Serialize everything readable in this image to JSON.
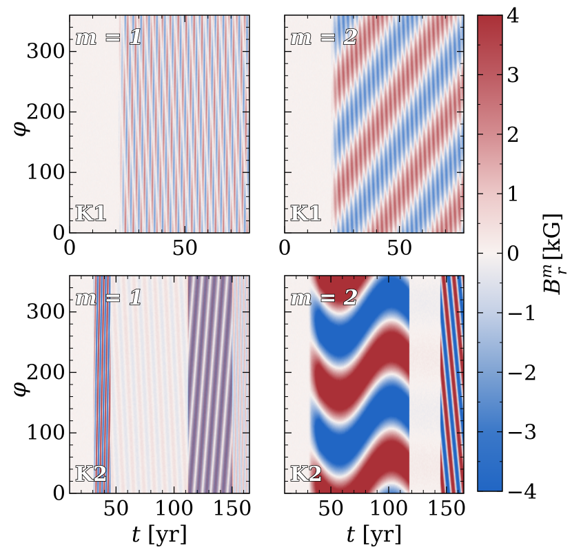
{
  "chart_data": {
    "type": "heatmap",
    "colorbar": {
      "label_main": "B",
      "label_sup": "m",
      "label_sub": "r",
      "label_unit": "[kG]",
      "min": -4,
      "max": 4,
      "ticks": [
        4,
        3,
        2,
        1,
        0,
        -1,
        -2,
        -3,
        -4
      ],
      "tick_labels": [
        "4",
        "3",
        "2",
        "1",
        "0",
        "−1",
        "−2",
        "−3",
        "−4"
      ],
      "colors": {
        "low": "#2166c4",
        "mid": "#f8f2f0",
        "high": "#aa3037"
      }
    },
    "panels": [
      {
        "id": "k1-m1",
        "model": "K1",
        "mode": "m = 1",
        "xlim": [
          0,
          78
        ],
        "ylim": [
          0,
          360
        ],
        "xticks": [
          0,
          50
        ],
        "xtick_labels": [
          "0",
          "50"
        ],
        "yticks": [
          0,
          100,
          200,
          300
        ],
        "ytick_labels": [
          "0",
          "100",
          "200",
          "300"
        ],
        "ylabel": "φ",
        "xlabel": "",
        "xunit": "",
        "onset_t": 21,
        "pattern": "stripes_fast",
        "amplitude": 2.5
      },
      {
        "id": "k1-m2",
        "model": "K1",
        "mode": "m = 2",
        "xlim": [
          0,
          78
        ],
        "ylim": [
          0,
          360
        ],
        "xticks": [
          0,
          50
        ],
        "xtick_labels": [
          "0",
          "50"
        ],
        "yticks": [
          0,
          100,
          200,
          300
        ],
        "ytick_labels": [],
        "ylabel": "",
        "xlabel": "",
        "xunit": "",
        "onset_t": 20,
        "pattern": "stripes_slow",
        "amplitude": 2.5
      },
      {
        "id": "k2-m1",
        "model": "K2",
        "mode": "m = 1",
        "xlim": [
          10,
          165
        ],
        "ylim": [
          0,
          360
        ],
        "xticks": [
          50,
          100,
          150
        ],
        "xtick_labels": [
          "50",
          "100",
          "150"
        ],
        "yticks": [
          0,
          100,
          200,
          300
        ],
        "ytick_labels": [
          "0",
          "100",
          "200",
          "300"
        ],
        "ylabel": "φ",
        "xlabel": "t",
        "xunit": "[yr]",
        "onset_t": 30,
        "pattern": "bursts",
        "amplitude": 3
      },
      {
        "id": "k2-m2",
        "model": "K2",
        "mode": "m = 2",
        "xlim": [
          10,
          165
        ],
        "ylim": [
          0,
          360
        ],
        "xticks": [
          50,
          100,
          150
        ],
        "xtick_labels": [
          "50",
          "100",
          "150"
        ],
        "yticks": [
          0,
          100,
          200,
          300
        ],
        "ytick_labels": [],
        "ylabel": "",
        "xlabel": "t",
        "xunit": "[yr]",
        "onset_t": 30,
        "pattern": "saturated_wave",
        "amplitude": 6
      }
    ]
  }
}
